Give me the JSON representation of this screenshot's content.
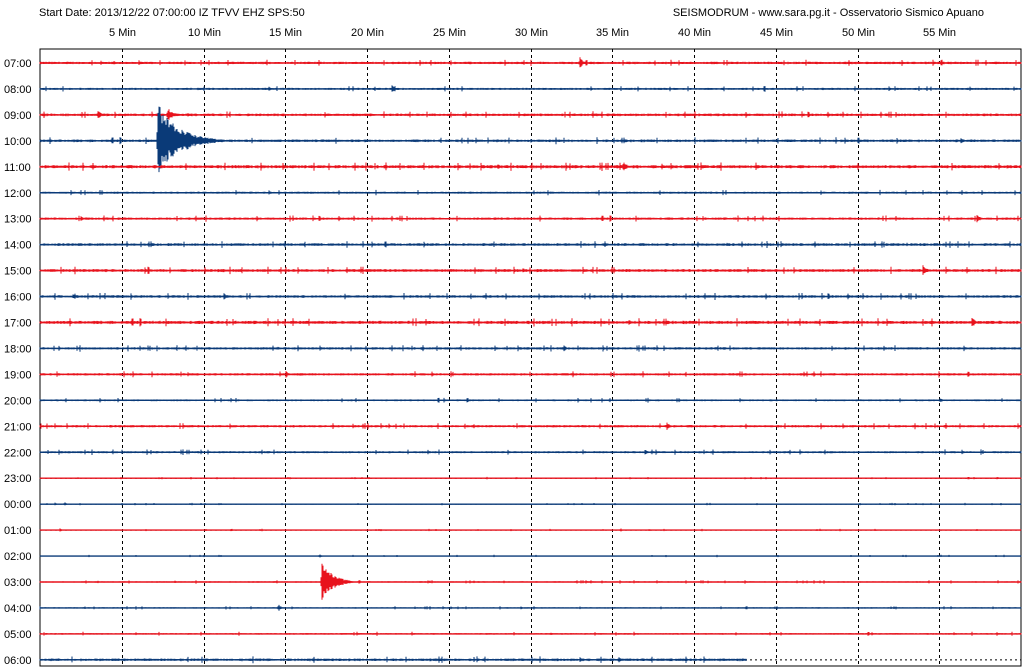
{
  "header": {
    "start_info": "Start Date: 2013/12/22 07:00:00 IZ TFVV EHZ SPS:50",
    "source": "SEISMODRUM - www.sara.pg.it - Osservatorio Sismico Apuano"
  },
  "colors": {
    "red_trace": "#e8121c",
    "blue_trace": "#0a3a78",
    "grid": "#000000",
    "background": "#ffffff"
  },
  "chart_data": {
    "type": "line",
    "title": "",
    "xlabel": "Min",
    "ylabel": "",
    "xlim": [
      0,
      60
    ],
    "x_ticks": [
      {
        "value": 5,
        "label": "5 Min"
      },
      {
        "value": 10,
        "label": "10 Min"
      },
      {
        "value": 15,
        "label": "15 Min"
      },
      {
        "value": 20,
        "label": "20 Min"
      },
      {
        "value": 25,
        "label": "25 Min"
      },
      {
        "value": 30,
        "label": "30 Min"
      },
      {
        "value": 35,
        "label": "35 Min"
      },
      {
        "value": 40,
        "label": "40 Min"
      },
      {
        "value": 45,
        "label": "45 Min"
      },
      {
        "value": 50,
        "label": "50 Min"
      },
      {
        "value": 55,
        "label": "55 Min"
      }
    ],
    "grid": true,
    "legend": "none",
    "series": [
      {
        "label": "07:00",
        "color": "red",
        "noise": 0.9,
        "end_min": 60,
        "events": [
          {
            "min": 33.0,
            "amp": 8,
            "dur": 0.6
          },
          {
            "min": 3.7,
            "amp": 3,
            "dur": 0.5
          },
          {
            "min": 4.5,
            "amp": 3,
            "dur": 0.4
          }
        ]
      },
      {
        "label": "08:00",
        "color": "blue",
        "noise": 0.8,
        "end_min": 60,
        "events": [
          {
            "min": 21.5,
            "amp": 4,
            "dur": 0.8
          },
          {
            "min": 14.0,
            "amp": 2.5,
            "dur": 0.6
          }
        ]
      },
      {
        "label": "09:00",
        "color": "red",
        "noise": 1.0,
        "end_min": 60,
        "events": [
          {
            "min": 3.5,
            "amp": 5,
            "dur": 0.8
          },
          {
            "min": 7.8,
            "amp": 8,
            "dur": 1.0
          },
          {
            "min": 9.0,
            "amp": 3,
            "dur": 0.4
          }
        ]
      },
      {
        "label": "10:00",
        "color": "blue",
        "noise": 1.0,
        "end_min": 60,
        "events": [
          {
            "min": 7.2,
            "amp": 38,
            "dur": 4.0
          },
          {
            "min": 56.3,
            "amp": 4,
            "dur": 0.5
          },
          {
            "min": 30.0,
            "amp": 2.5,
            "dur": 0.4
          }
        ]
      },
      {
        "label": "11:00",
        "color": "red",
        "noise": 1.2,
        "end_min": 60,
        "events": [
          {
            "min": 35.6,
            "amp": 5,
            "dur": 1.2
          },
          {
            "min": 38.0,
            "amp": 4,
            "dur": 0.6
          },
          {
            "min": 28.0,
            "amp": 3,
            "dur": 0.5
          }
        ]
      },
      {
        "label": "12:00",
        "color": "blue",
        "noise": 0.8,
        "end_min": 60,
        "events": [
          {
            "min": 14.0,
            "amp": 2.5,
            "dur": 0.5
          },
          {
            "min": 41.0,
            "amp": 2.5,
            "dur": 0.4
          }
        ]
      },
      {
        "label": "13:00",
        "color": "red",
        "noise": 0.9,
        "end_min": 60,
        "events": [
          {
            "min": 57.3,
            "amp": 5,
            "dur": 0.6
          },
          {
            "min": 2.5,
            "amp": 3,
            "dur": 0.5
          },
          {
            "min": 29.0,
            "amp": 3,
            "dur": 0.5
          }
        ]
      },
      {
        "label": "14:00",
        "color": "blue",
        "noise": 1.0,
        "end_min": 60,
        "events": [
          {
            "min": 5.3,
            "amp": 4,
            "dur": 0.4
          },
          {
            "min": 42.0,
            "amp": 3,
            "dur": 0.6
          },
          {
            "min": 53.0,
            "amp": 3,
            "dur": 0.5
          }
        ]
      },
      {
        "label": "15:00",
        "color": "red",
        "noise": 1.1,
        "end_min": 60,
        "events": [
          {
            "min": 54.0,
            "amp": 6,
            "dur": 0.8
          },
          {
            "min": 29.5,
            "amp": 4,
            "dur": 0.6
          },
          {
            "min": 4.0,
            "amp": 3,
            "dur": 0.5
          }
        ]
      },
      {
        "label": "16:00",
        "color": "blue",
        "noise": 1.0,
        "end_min": 60,
        "events": [
          {
            "min": 11.2,
            "amp": 5,
            "dur": 0.7
          },
          {
            "min": 2.0,
            "amp": 3,
            "dur": 0.5
          }
        ]
      },
      {
        "label": "17:00",
        "color": "red",
        "noise": 1.2,
        "end_min": 60,
        "events": [
          {
            "min": 57.0,
            "amp": 6,
            "dur": 0.6
          },
          {
            "min": 36.0,
            "amp": 4,
            "dur": 0.5
          },
          {
            "min": 52.0,
            "amp": 3,
            "dur": 0.4
          }
        ]
      },
      {
        "label": "18:00",
        "color": "blue",
        "noise": 0.9,
        "end_min": 60,
        "events": [
          {
            "min": 32.0,
            "amp": 5,
            "dur": 0.5
          },
          {
            "min": 14.5,
            "amp": 2.5,
            "dur": 0.4
          }
        ]
      },
      {
        "label": "19:00",
        "color": "red",
        "noise": 0.9,
        "end_min": 60,
        "events": [
          {
            "min": 15.0,
            "amp": 5,
            "dur": 0.6
          },
          {
            "min": 9.0,
            "amp": 3,
            "dur": 0.6
          }
        ]
      },
      {
        "label": "20:00",
        "color": "blue",
        "noise": 0.7,
        "end_min": 60,
        "events": [
          {
            "min": 55.0,
            "amp": 4,
            "dur": 0.5
          }
        ]
      },
      {
        "label": "21:00",
        "color": "red",
        "noise": 0.9,
        "end_min": 60,
        "events": [
          {
            "min": 38.3,
            "amp": 5,
            "dur": 0.6
          },
          {
            "min": 26.5,
            "amp": 3,
            "dur": 0.5
          }
        ]
      },
      {
        "label": "22:00",
        "color": "blue",
        "noise": 0.8,
        "end_min": 60,
        "events": [
          {
            "min": 37.0,
            "amp": 3,
            "dur": 0.5
          }
        ]
      },
      {
        "label": "23:00",
        "color": "red",
        "noise": 0.35,
        "end_min": 60,
        "events": []
      },
      {
        "label": "00:00",
        "color": "blue",
        "noise": 0.35,
        "end_min": 60,
        "events": [
          {
            "min": 0.9,
            "amp": 2.5,
            "dur": 0.3
          },
          {
            "min": 1.5,
            "amp": 3,
            "dur": 0.3
          },
          {
            "min": 9.8,
            "amp": 2,
            "dur": 0.3
          }
        ]
      },
      {
        "label": "01:00",
        "color": "red",
        "noise": 0.35,
        "end_min": 60,
        "events": [
          {
            "min": 1.2,
            "amp": 2.5,
            "dur": 0.3
          },
          {
            "min": 35.5,
            "amp": 2.5,
            "dur": 0.3
          },
          {
            "min": 37.2,
            "amp": 2.5,
            "dur": 0.3
          }
        ]
      },
      {
        "label": "02:00",
        "color": "blue",
        "noise": 0.35,
        "end_min": 60,
        "events": [
          {
            "min": 17.1,
            "amp": 3,
            "dur": 0.3
          },
          {
            "min": 21.0,
            "amp": 2,
            "dur": 0.3
          }
        ]
      },
      {
        "label": "03:00",
        "color": "red",
        "noise": 0.5,
        "end_min": 60,
        "events": [
          {
            "min": 17.2,
            "amp": 26,
            "dur": 2.0
          },
          {
            "min": 3.5,
            "amp": 2.5,
            "dur": 0.3
          }
        ]
      },
      {
        "label": "04:00",
        "color": "blue",
        "noise": 0.5,
        "end_min": 60,
        "events": [
          {
            "min": 14.6,
            "amp": 5,
            "dur": 0.4
          },
          {
            "min": 29.4,
            "amp": 2.5,
            "dur": 0.3
          },
          {
            "min": 33.0,
            "amp": 2,
            "dur": 0.3
          }
        ]
      },
      {
        "label": "05:00",
        "color": "red",
        "noise": 0.6,
        "end_min": 60,
        "events": [
          {
            "min": 31.2,
            "amp": 3,
            "dur": 0.4
          },
          {
            "min": 58.5,
            "amp": 2.5,
            "dur": 0.4
          }
        ]
      },
      {
        "label": "06:00",
        "color": "blue",
        "noise": 1.0,
        "end_min": 43.2,
        "events": [
          {
            "min": 35.4,
            "amp": 4,
            "dur": 0.6
          },
          {
            "min": 33.0,
            "amp": 3,
            "dur": 0.5
          }
        ]
      }
    ]
  }
}
